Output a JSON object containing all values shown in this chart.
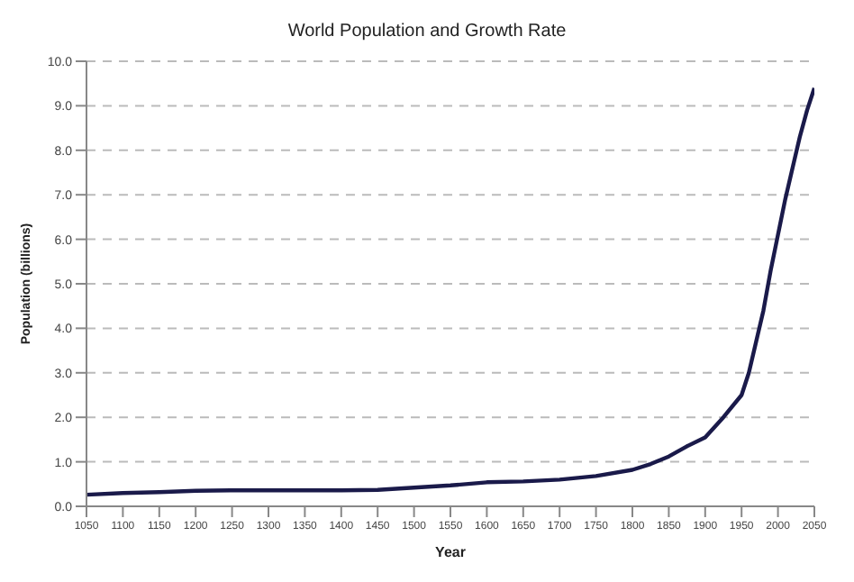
{
  "chart_data": {
    "type": "line",
    "title": "World Population and Growth Rate",
    "xlabel": "Year",
    "ylabel": "Population (billions)",
    "x": [
      1050,
      1100,
      1150,
      1200,
      1250,
      1300,
      1350,
      1400,
      1450,
      1500,
      1550,
      1600,
      1650,
      1700,
      1750,
      1800,
      1825,
      1850,
      1875,
      1900,
      1925,
      1950,
      1960,
      1970,
      1980,
      1990,
      2000,
      2010,
      2020,
      2030,
      2040,
      2050
    ],
    "series": [
      {
        "color": "#1a1a4a",
        "values": [
          0.26,
          0.3,
          0.32,
          0.35,
          0.36,
          0.36,
          0.36,
          0.36,
          0.37,
          0.42,
          0.47,
          0.54,
          0.56,
          0.6,
          0.68,
          0.82,
          0.95,
          1.12,
          1.35,
          1.55,
          2.0,
          2.5,
          3.0,
          3.7,
          4.4,
          5.3,
          6.1,
          6.9,
          7.6,
          8.3,
          8.9,
          9.4
        ]
      }
    ],
    "xlim": [
      1050,
      2050
    ],
    "xticks": [
      1050,
      1100,
      1150,
      1200,
      1250,
      1300,
      1350,
      1400,
      1450,
      1500,
      1550,
      1600,
      1650,
      1700,
      1750,
      1800,
      1850,
      1900,
      1950,
      2000,
      2050
    ],
    "ylim": [
      0,
      10
    ],
    "yticks": [
      {
        "value": 0,
        "label": "0.0"
      },
      {
        "value": 1,
        "label": "1.0"
      },
      {
        "value": 2,
        "label": "2.0"
      },
      {
        "value": 3,
        "label": "3.0"
      },
      {
        "value": 4,
        "label": "4.0"
      },
      {
        "value": 5,
        "label": "5.0"
      },
      {
        "value": 6,
        "label": "6.0"
      },
      {
        "value": 7,
        "label": "7.0"
      },
      {
        "value": 8,
        "label": "8.0"
      },
      {
        "value": 9,
        "label": "9.0"
      },
      {
        "value": 10,
        "label": "10.0"
      }
    ],
    "grid": "y",
    "marker": "none",
    "line_style": "solid"
  }
}
